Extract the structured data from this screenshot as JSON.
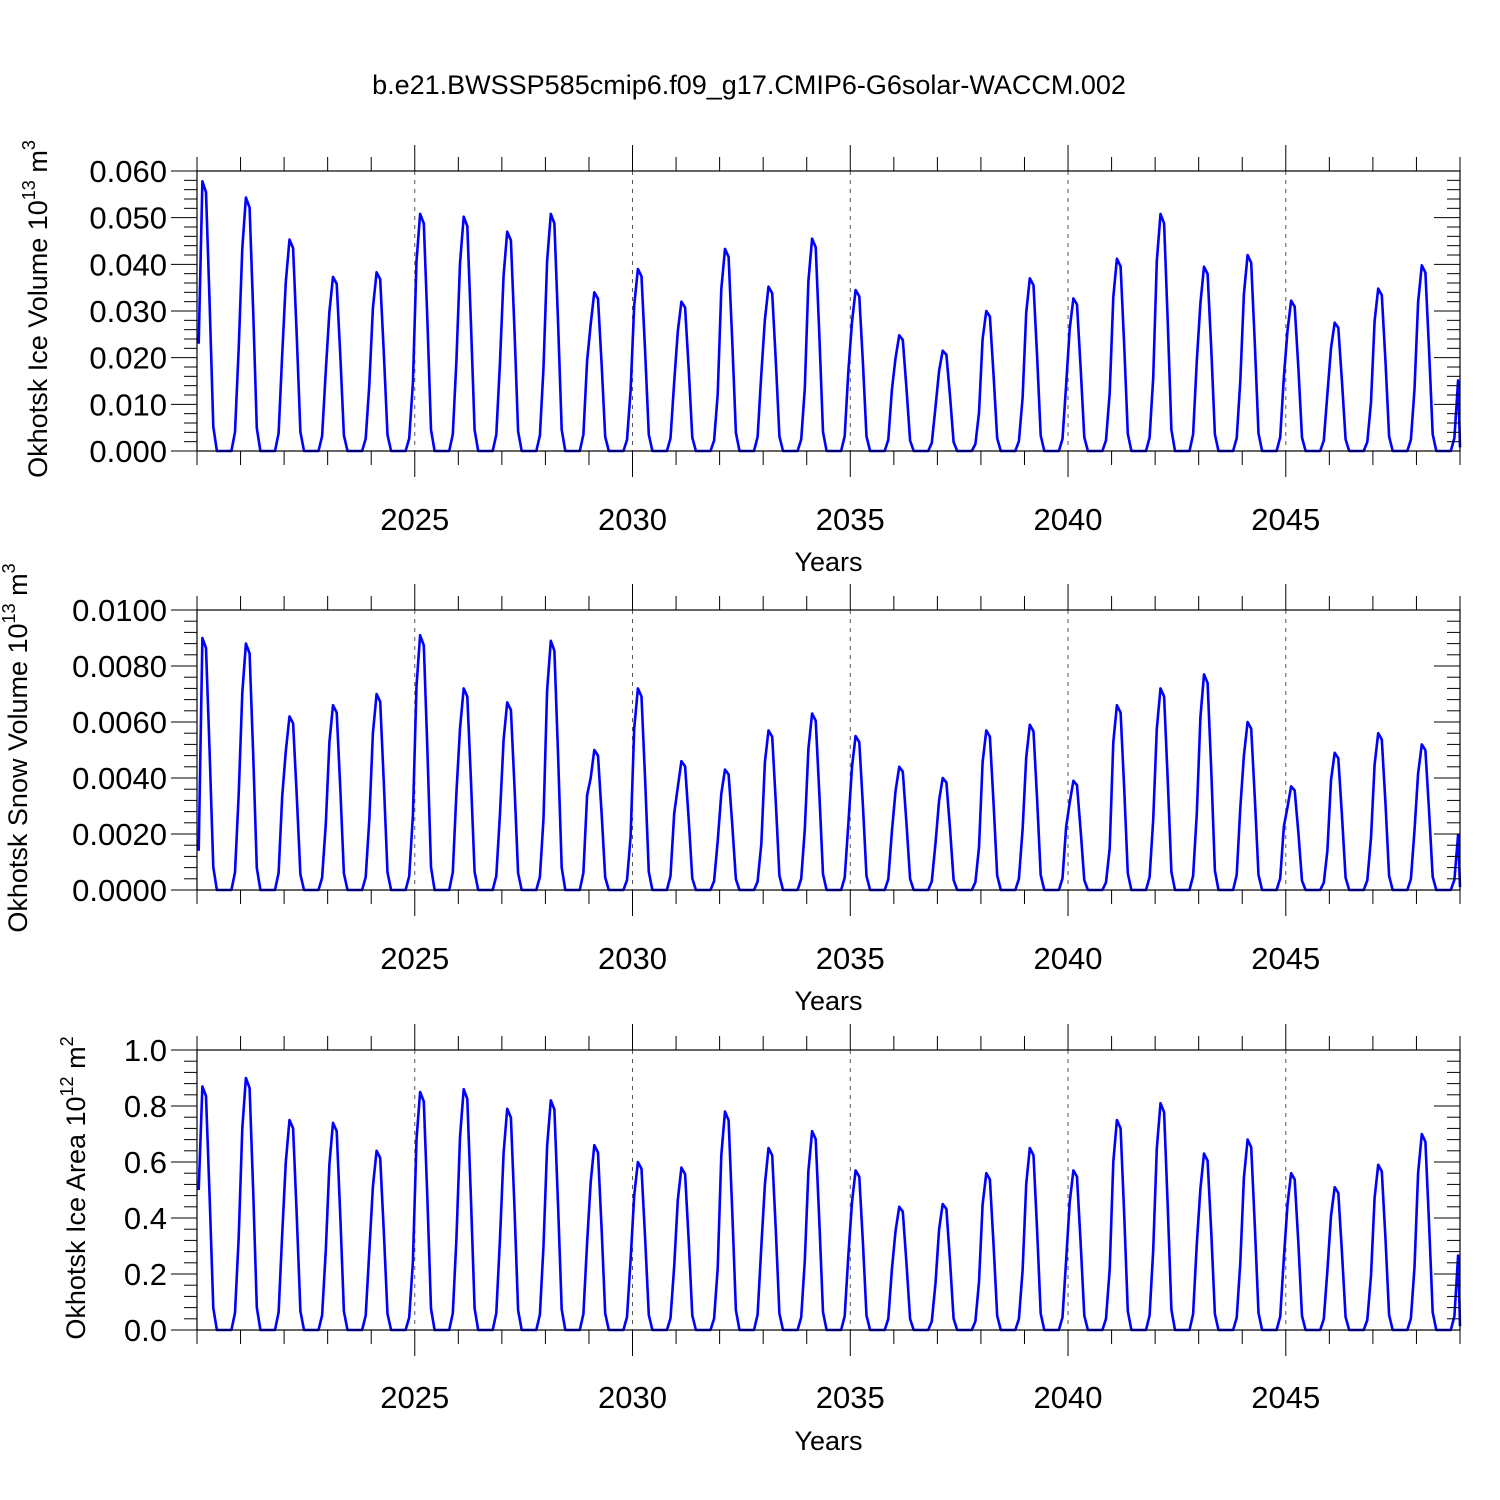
{
  "figure_title": "b.e21.BWSSP585cmip6.f09_g17.CMIP6-G6solar-WACCM.002",
  "colors": {
    "line": "#0000ff",
    "axis": "#000000",
    "grid": "#555555"
  },
  "chart_data": [
    {
      "type": "line",
      "title": "",
      "ylabel_main": "Okhotsk Ice Volume 10",
      "ylabel_exp": "13",
      "ylabel_unit": " m",
      "ylabel_unit_exp": "3",
      "xlabel": "Years",
      "xlim": [
        2020.0,
        2049.0
      ],
      "ylim": [
        0.0,
        0.06
      ],
      "xticks": [
        2025,
        2030,
        2035,
        2040,
        2045
      ],
      "xtick_labels": [
        "2025",
        "2030",
        "2035",
        "2040",
        "2045"
      ],
      "yticks": [
        0.0,
        0.01,
        0.02,
        0.03,
        0.04,
        0.05,
        0.06
      ],
      "ytick_labels": [
        "0.000",
        "0.010",
        "0.020",
        "0.030",
        "0.040",
        "0.050",
        "0.060"
      ],
      "grid": "vertical dashed at major x ticks",
      "series": [
        {
          "name": "Okhotsk Ice Volume",
          "t0": 2020.04,
          "dt": 0.08333,
          "peaks": [
            0.0578,
            0.0543,
            0.0453,
            0.0373,
            0.0383,
            0.0508,
            0.0502,
            0.047,
            0.0508,
            0.034,
            0.039,
            0.032,
            0.0433,
            0.0352,
            0.0455,
            0.0345,
            0.0248,
            0.0215,
            0.03,
            0.037,
            0.0327,
            0.0412,
            0.0508,
            0.0395,
            0.042,
            0.0322,
            0.0275,
            0.0348,
            0.0398
          ],
          "start_value": 0.023
        }
      ]
    },
    {
      "type": "line",
      "title": "",
      "ylabel_main": "Okhotsk Snow Volume 10",
      "ylabel_exp": "13",
      "ylabel_unit": " m",
      "ylabel_unit_exp": "3",
      "xlabel": "Years",
      "xlim": [
        2020.0,
        2049.0
      ],
      "ylim": [
        0.0,
        0.01
      ],
      "xticks": [
        2025,
        2030,
        2035,
        2040,
        2045
      ],
      "xtick_labels": [
        "2025",
        "2030",
        "2035",
        "2040",
        "2045"
      ],
      "yticks": [
        0.0,
        0.002,
        0.004,
        0.006,
        0.008,
        0.01
      ],
      "ytick_labels": [
        "0.0000",
        "0.0020",
        "0.0040",
        "0.0060",
        "0.0080",
        "0.0100"
      ],
      "grid": "vertical dashed at major x ticks",
      "series": [
        {
          "name": "Okhotsk Snow Volume",
          "t0": 2020.04,
          "dt": 0.08333,
          "peaks": [
            0.009,
            0.0088,
            0.0062,
            0.0066,
            0.007,
            0.0091,
            0.0072,
            0.0067,
            0.0089,
            0.005,
            0.0072,
            0.0046,
            0.0043,
            0.0057,
            0.0063,
            0.0055,
            0.0044,
            0.004,
            0.0057,
            0.0059,
            0.0039,
            0.0066,
            0.0072,
            0.0077,
            0.006,
            0.0037,
            0.0049,
            0.0056,
            0.0052
          ],
          "start_value": 0.0014
        }
      ]
    },
    {
      "type": "line",
      "title": "",
      "ylabel_main": "Okhotsk Ice Area 10",
      "ylabel_exp": "12",
      "ylabel_unit": " m",
      "ylabel_unit_exp": "2",
      "xlabel": "Years",
      "xlim": [
        2020.0,
        2049.0
      ],
      "ylim": [
        0.0,
        1.0
      ],
      "xticks": [
        2025,
        2030,
        2035,
        2040,
        2045
      ],
      "xtick_labels": [
        "2025",
        "2030",
        "2035",
        "2040",
        "2045"
      ],
      "yticks": [
        0.0,
        0.2,
        0.4,
        0.6,
        0.8,
        1.0
      ],
      "ytick_labels": [
        "0.0",
        "0.2",
        "0.4",
        "0.6",
        "0.8",
        "1.0"
      ],
      "grid": "vertical dashed at major x ticks",
      "series": [
        {
          "name": "Okhotsk Ice Area",
          "t0": 2020.04,
          "dt": 0.08333,
          "peaks": [
            0.87,
            0.9,
            0.75,
            0.74,
            0.64,
            0.85,
            0.86,
            0.79,
            0.82,
            0.66,
            0.6,
            0.58,
            0.78,
            0.65,
            0.71,
            0.57,
            0.44,
            0.45,
            0.56,
            0.65,
            0.57,
            0.75,
            0.81,
            0.63,
            0.68,
            0.56,
            0.51,
            0.59,
            0.7
          ],
          "start_value": 0.5
        }
      ]
    }
  ]
}
